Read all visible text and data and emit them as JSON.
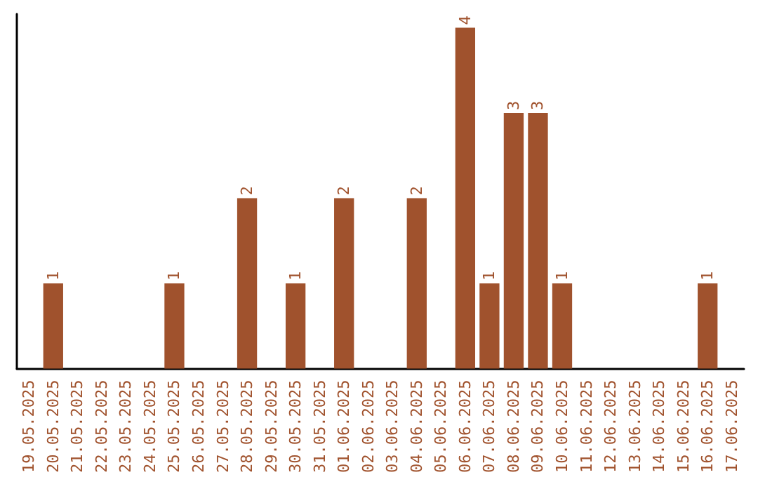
{
  "chart_data": {
    "type": "bar",
    "categories": [
      "19.05.2025",
      "20.05.2025",
      "21.05.2025",
      "22.05.2025",
      "23.05.2025",
      "24.05.2025",
      "25.05.2025",
      "26.05.2025",
      "27.05.2025",
      "28.05.2025",
      "29.05.2025",
      "30.05.2025",
      "31.05.2025",
      "01.06.2025",
      "02.06.2025",
      "03.06.2025",
      "04.06.2025",
      "05.06.2025",
      "06.06.2025",
      "07.06.2025",
      "08.06.2025",
      "09.06.2025",
      "10.06.2025",
      "11.06.2025",
      "12.06.2025",
      "13.06.2025",
      "14.06.2025",
      "15.06.2025",
      "16.06.2025",
      "17.06.2025"
    ],
    "values": [
      null,
      1,
      null,
      null,
      null,
      null,
      1,
      null,
      null,
      2,
      null,
      1,
      null,
      2,
      null,
      null,
      2,
      null,
      4,
      1,
      3,
      3,
      1,
      null,
      null,
      null,
      null,
      null,
      1,
      null
    ],
    "color": "#a0522d",
    "data_labels": true,
    "tick_labels": "x"
  }
}
